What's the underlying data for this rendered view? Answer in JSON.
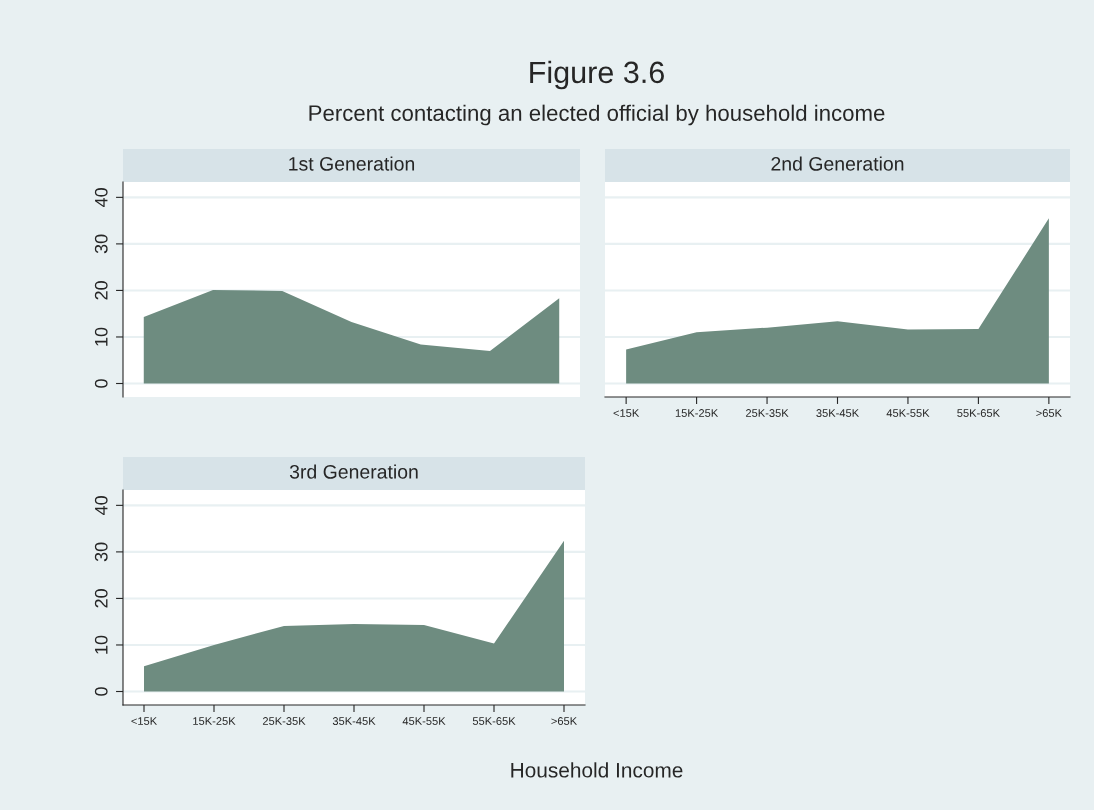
{
  "chart_data": [
    {
      "type": "area",
      "title": "1st Generation",
      "annotations": [
        "Figure 3.6",
        "Percent contacting an elected official by household income"
      ],
      "categories": [
        null,
        null,
        null,
        null,
        null,
        null,
        null
      ],
      "values": [
        14.3,
        20.1,
        19.9,
        13.2,
        8.4,
        7.0,
        18.3
      ],
      "color": "#6e8c80",
      "ylim": [
        -2.9,
        43.3
      ],
      "yticks": [
        0,
        10,
        20,
        30,
        40
      ],
      "grid": "y",
      "tick_labels": "y"
    },
    {
      "type": "area",
      "title": "2nd Generation",
      "categories": [
        "<15K",
        "15K-25K",
        "25K-35K",
        "35K-45K",
        "45K-55K",
        "55K-65K",
        ">65K"
      ],
      "values": [
        7.3,
        11.0,
        12.0,
        13.4,
        11.6,
        11.7,
        35.5
      ],
      "color": "#6e8c80",
      "ylim": [
        -2.9,
        43.3
      ],
      "yticks": [
        0,
        10,
        20,
        30,
        40
      ],
      "grid": "y",
      "tick_labels": "x"
    },
    {
      "type": "area",
      "title": "3rd Generation",
      "xlabel": "Household Income",
      "categories": [
        "<15K",
        "15K-25K",
        "25K-35K",
        "35K-45K",
        "45K-55K",
        "55K-65K",
        ">65K"
      ],
      "values": [
        5.4,
        10.0,
        14.1,
        14.5,
        14.3,
        10.3,
        32.4
      ],
      "color": "#6e8c80",
      "ylim": [
        -2.9,
        43.3
      ],
      "yticks": [
        0,
        10,
        20,
        30,
        40
      ],
      "grid": "y"
    }
  ]
}
